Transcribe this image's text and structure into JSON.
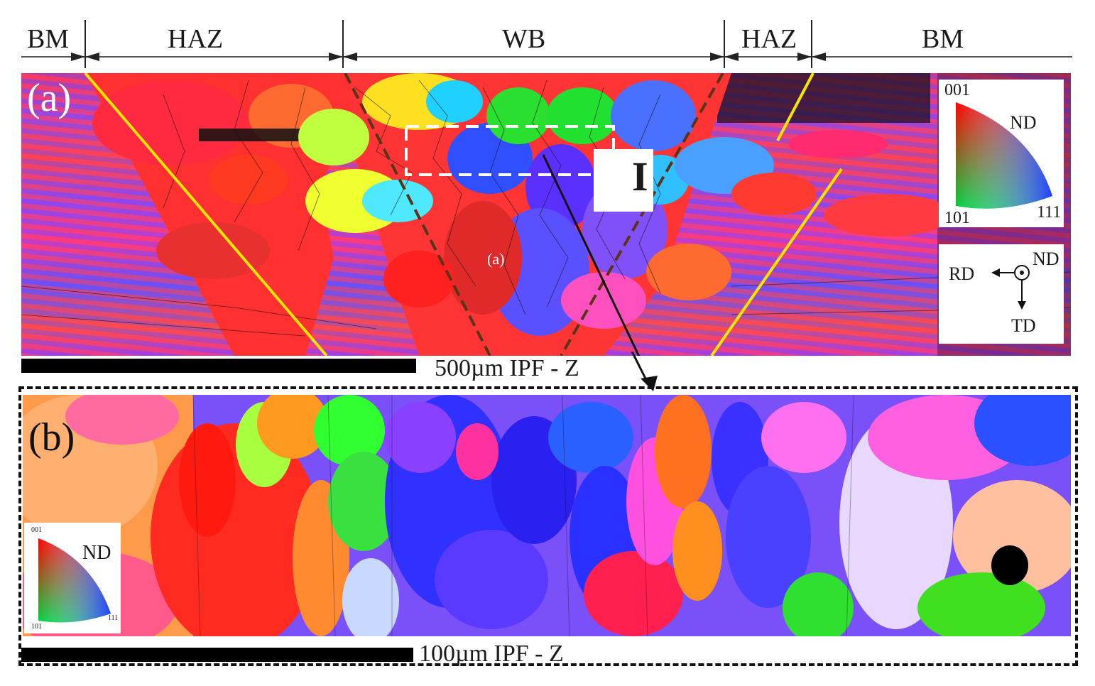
{
  "zones": {
    "bm_left": "BM",
    "haz_left": "HAZ",
    "wb": "WB",
    "haz_right": "HAZ",
    "bm_right": "BM"
  },
  "panel_a": {
    "letter": "(a)",
    "inner_mark": "(a)",
    "marker_I": "I",
    "scale_text": "500µm  IPF - Z",
    "ipf_legend": {
      "top": "001",
      "axis": "ND",
      "left": "101",
      "right": "111"
    },
    "axes": {
      "rd": "RD",
      "nd": "ND",
      "td": "TD"
    }
  },
  "panel_b": {
    "letter": "(b)",
    "scale_text": "100µm  IPF - Z",
    "ipf_legend": {
      "top": "001",
      "axis": "ND",
      "left": "101",
      "right": "111"
    }
  },
  "colors": {
    "zone_boundary": "#f5e600",
    "wb_boundary": "#5a3318",
    "inset_box": "#ffffff"
  }
}
